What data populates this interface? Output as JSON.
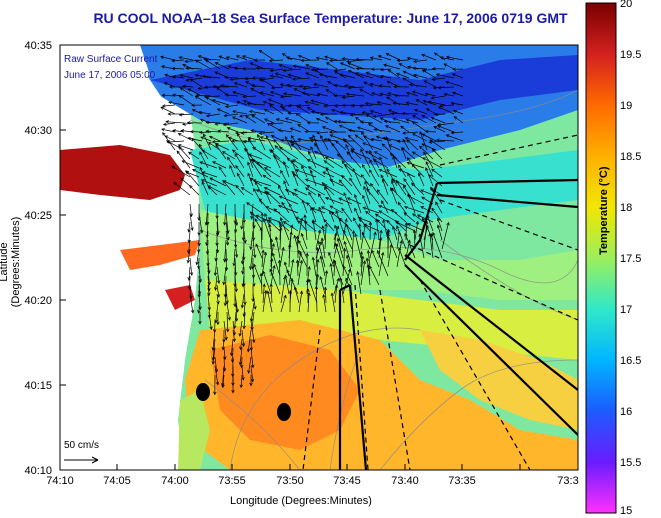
{
  "title": "RU COOL  NOAA–18  Sea Surface Temperature:  June 17, 2006 0719 GMT",
  "map": {
    "xlabel": "Longitude (Degrees:Minutes)",
    "ylabel": "Latitude (Degrees:Minutes)",
    "x_ticks": [
      "74:10",
      "74:05",
      "74:00",
      "73:55",
      "73:50",
      "73:45",
      "73:40",
      "73:35",
      "73:3"
    ],
    "y_ticks": [
      "40:35",
      "40:30",
      "40:25",
      "40:20",
      "40:15",
      "40:10"
    ],
    "legend_text_1": "Raw Surface Current",
    "legend_text_2": "June 17, 2006 05:00",
    "scale_label": "50 cm/s"
  },
  "colorbar": {
    "label": "Temperature (°C)",
    "ticks": [
      "20",
      "19.5",
      "19",
      "18.5",
      "18",
      "17.5",
      "17",
      "16.5",
      "16",
      "15.5",
      "15"
    ],
    "colors": [
      "#7a0000",
      "#d42020",
      "#ff6a00",
      "#ffb000",
      "#f2e600",
      "#9cef5a",
      "#30e8c8",
      "#00b6ff",
      "#1c5cff",
      "#6a1cff",
      "#ff30ff"
    ]
  }
}
